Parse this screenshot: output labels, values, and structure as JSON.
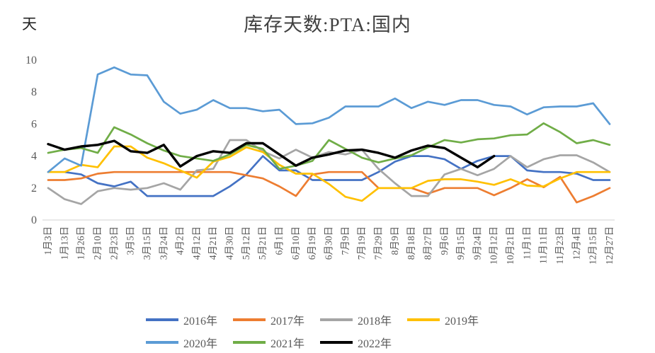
{
  "chart_data": {
    "type": "line",
    "title": "库存天数:PTA:国内",
    "ylabel": "天",
    "ylim": [
      0,
      10
    ],
    "y_ticks": [
      0,
      2,
      4,
      6,
      8,
      10
    ],
    "grid": false,
    "legend_position": "bottom",
    "axis_color": "#D9D9D9",
    "tick_label_color": "#595959",
    "title_color": "#404040",
    "x_labels": [
      "1月3日",
      "1月13日",
      "1月26日",
      "2月10日",
      "2月23日",
      "3月5日",
      "3月15日",
      "3月24日",
      "4月2日",
      "4月12日",
      "4月21日",
      "4月30日",
      "5月12日",
      "5月21日",
      "6月1日",
      "6月10日",
      "6月19日",
      "6月30日",
      "7月9日",
      "7月19日",
      "7月29日",
      "8月9日",
      "8月18日",
      "8月27日",
      "9月6日",
      "9月15日",
      "9月24日",
      "10月12日",
      "10月21日",
      "11月1日",
      "11月11日",
      "11月23日",
      "12月4日",
      "12月15日",
      "12月27日"
    ],
    "series": [
      {
        "name": "2016年",
        "color": "#4472C4",
        "values": [
          3.0,
          3.0,
          2.85,
          2.3,
          2.1,
          2.4,
          1.5,
          1.5,
          1.5,
          1.5,
          1.5,
          2.1,
          2.85,
          4.0,
          3.1,
          3.1,
          2.5,
          2.5,
          2.5,
          2.5,
          3.0,
          3.65,
          4.0,
          4.0,
          3.8,
          3.2,
          3.7,
          4.0,
          4.0,
          3.1,
          3.0,
          3.0,
          2.9,
          2.5,
          2.5
        ]
      },
      {
        "name": "2017年",
        "color": "#ED7D31",
        "values": [
          2.5,
          2.5,
          2.6,
          2.9,
          3.0,
          3.0,
          3.0,
          3.0,
          3.0,
          3.0,
          3.0,
          3.0,
          2.8,
          2.6,
          2.1,
          1.5,
          2.85,
          3.0,
          3.0,
          3.0,
          2.0,
          2.0,
          2.0,
          1.65,
          2.0,
          2.0,
          2.0,
          1.55,
          2.0,
          2.55,
          2.05,
          2.7,
          1.1,
          1.5,
          2.0
        ]
      },
      {
        "name": "2018年",
        "color": "#A5A5A5",
        "values": [
          2.0,
          1.3,
          1.0,
          1.8,
          2.0,
          1.9,
          2.0,
          2.3,
          1.9,
          3.1,
          3.2,
          5.0,
          5.0,
          4.3,
          3.85,
          4.4,
          3.9,
          4.25,
          4.1,
          4.4,
          3.2,
          2.3,
          1.5,
          1.5,
          2.85,
          3.2,
          2.8,
          3.2,
          4.0,
          3.3,
          3.8,
          4.05,
          4.05,
          3.6,
          3.0
        ]
      },
      {
        "name": "2019年",
        "color": "#FFC000",
        "values": [
          3.0,
          3.0,
          3.45,
          3.3,
          4.6,
          4.6,
          3.9,
          3.55,
          3.1,
          2.65,
          3.65,
          3.95,
          4.55,
          4.25,
          3.45,
          2.9,
          2.9,
          2.25,
          1.45,
          1.2,
          2.0,
          2.0,
          2.0,
          2.45,
          2.55,
          2.55,
          2.4,
          2.2,
          2.55,
          2.15,
          2.1,
          2.6,
          3.0,
          3.0,
          3.0
        ]
      },
      {
        "name": "2020年",
        "color": "#5B9BD5",
        "values": [
          3.0,
          3.85,
          3.4,
          9.1,
          9.55,
          9.1,
          9.05,
          7.4,
          6.65,
          6.9,
          7.5,
          7.0,
          7.0,
          6.8,
          6.9,
          6.0,
          6.05,
          6.4,
          7.1,
          7.1,
          7.1,
          7.6,
          7.0,
          7.4,
          7.2,
          7.5,
          7.5,
          7.2,
          7.1,
          6.6,
          7.05,
          7.1,
          7.1,
          7.3,
          6.0
        ]
      },
      {
        "name": "2021年",
        "color": "#70AD47",
        "values": [
          4.2,
          4.4,
          4.5,
          4.2,
          5.8,
          5.35,
          4.8,
          4.35,
          4.0,
          3.85,
          3.7,
          4.1,
          4.7,
          4.45,
          3.2,
          3.4,
          3.7,
          5.0,
          4.45,
          3.9,
          3.6,
          3.85,
          4.05,
          4.55,
          5.0,
          4.85,
          5.05,
          5.1,
          5.3,
          5.35,
          6.05,
          5.5,
          4.8,
          5.0,
          4.7
        ]
      },
      {
        "name": "2022年",
        "color": "#000000",
        "values": [
          4.75,
          4.4,
          4.6,
          4.7,
          4.95,
          4.3,
          4.2,
          4.7,
          3.35,
          4.0,
          4.3,
          4.2,
          4.8,
          4.8,
          4.1,
          3.4,
          3.9,
          4.1,
          4.35,
          4.4,
          4.2,
          3.9,
          4.35,
          4.65,
          4.5,
          3.9,
          3.3,
          4.0
        ]
      }
    ],
    "legend_rows": [
      [
        "2016年",
        "2017年",
        "2018年",
        "2019年"
      ],
      [
        "2020年",
        "2021年",
        "2022年"
      ]
    ]
  }
}
